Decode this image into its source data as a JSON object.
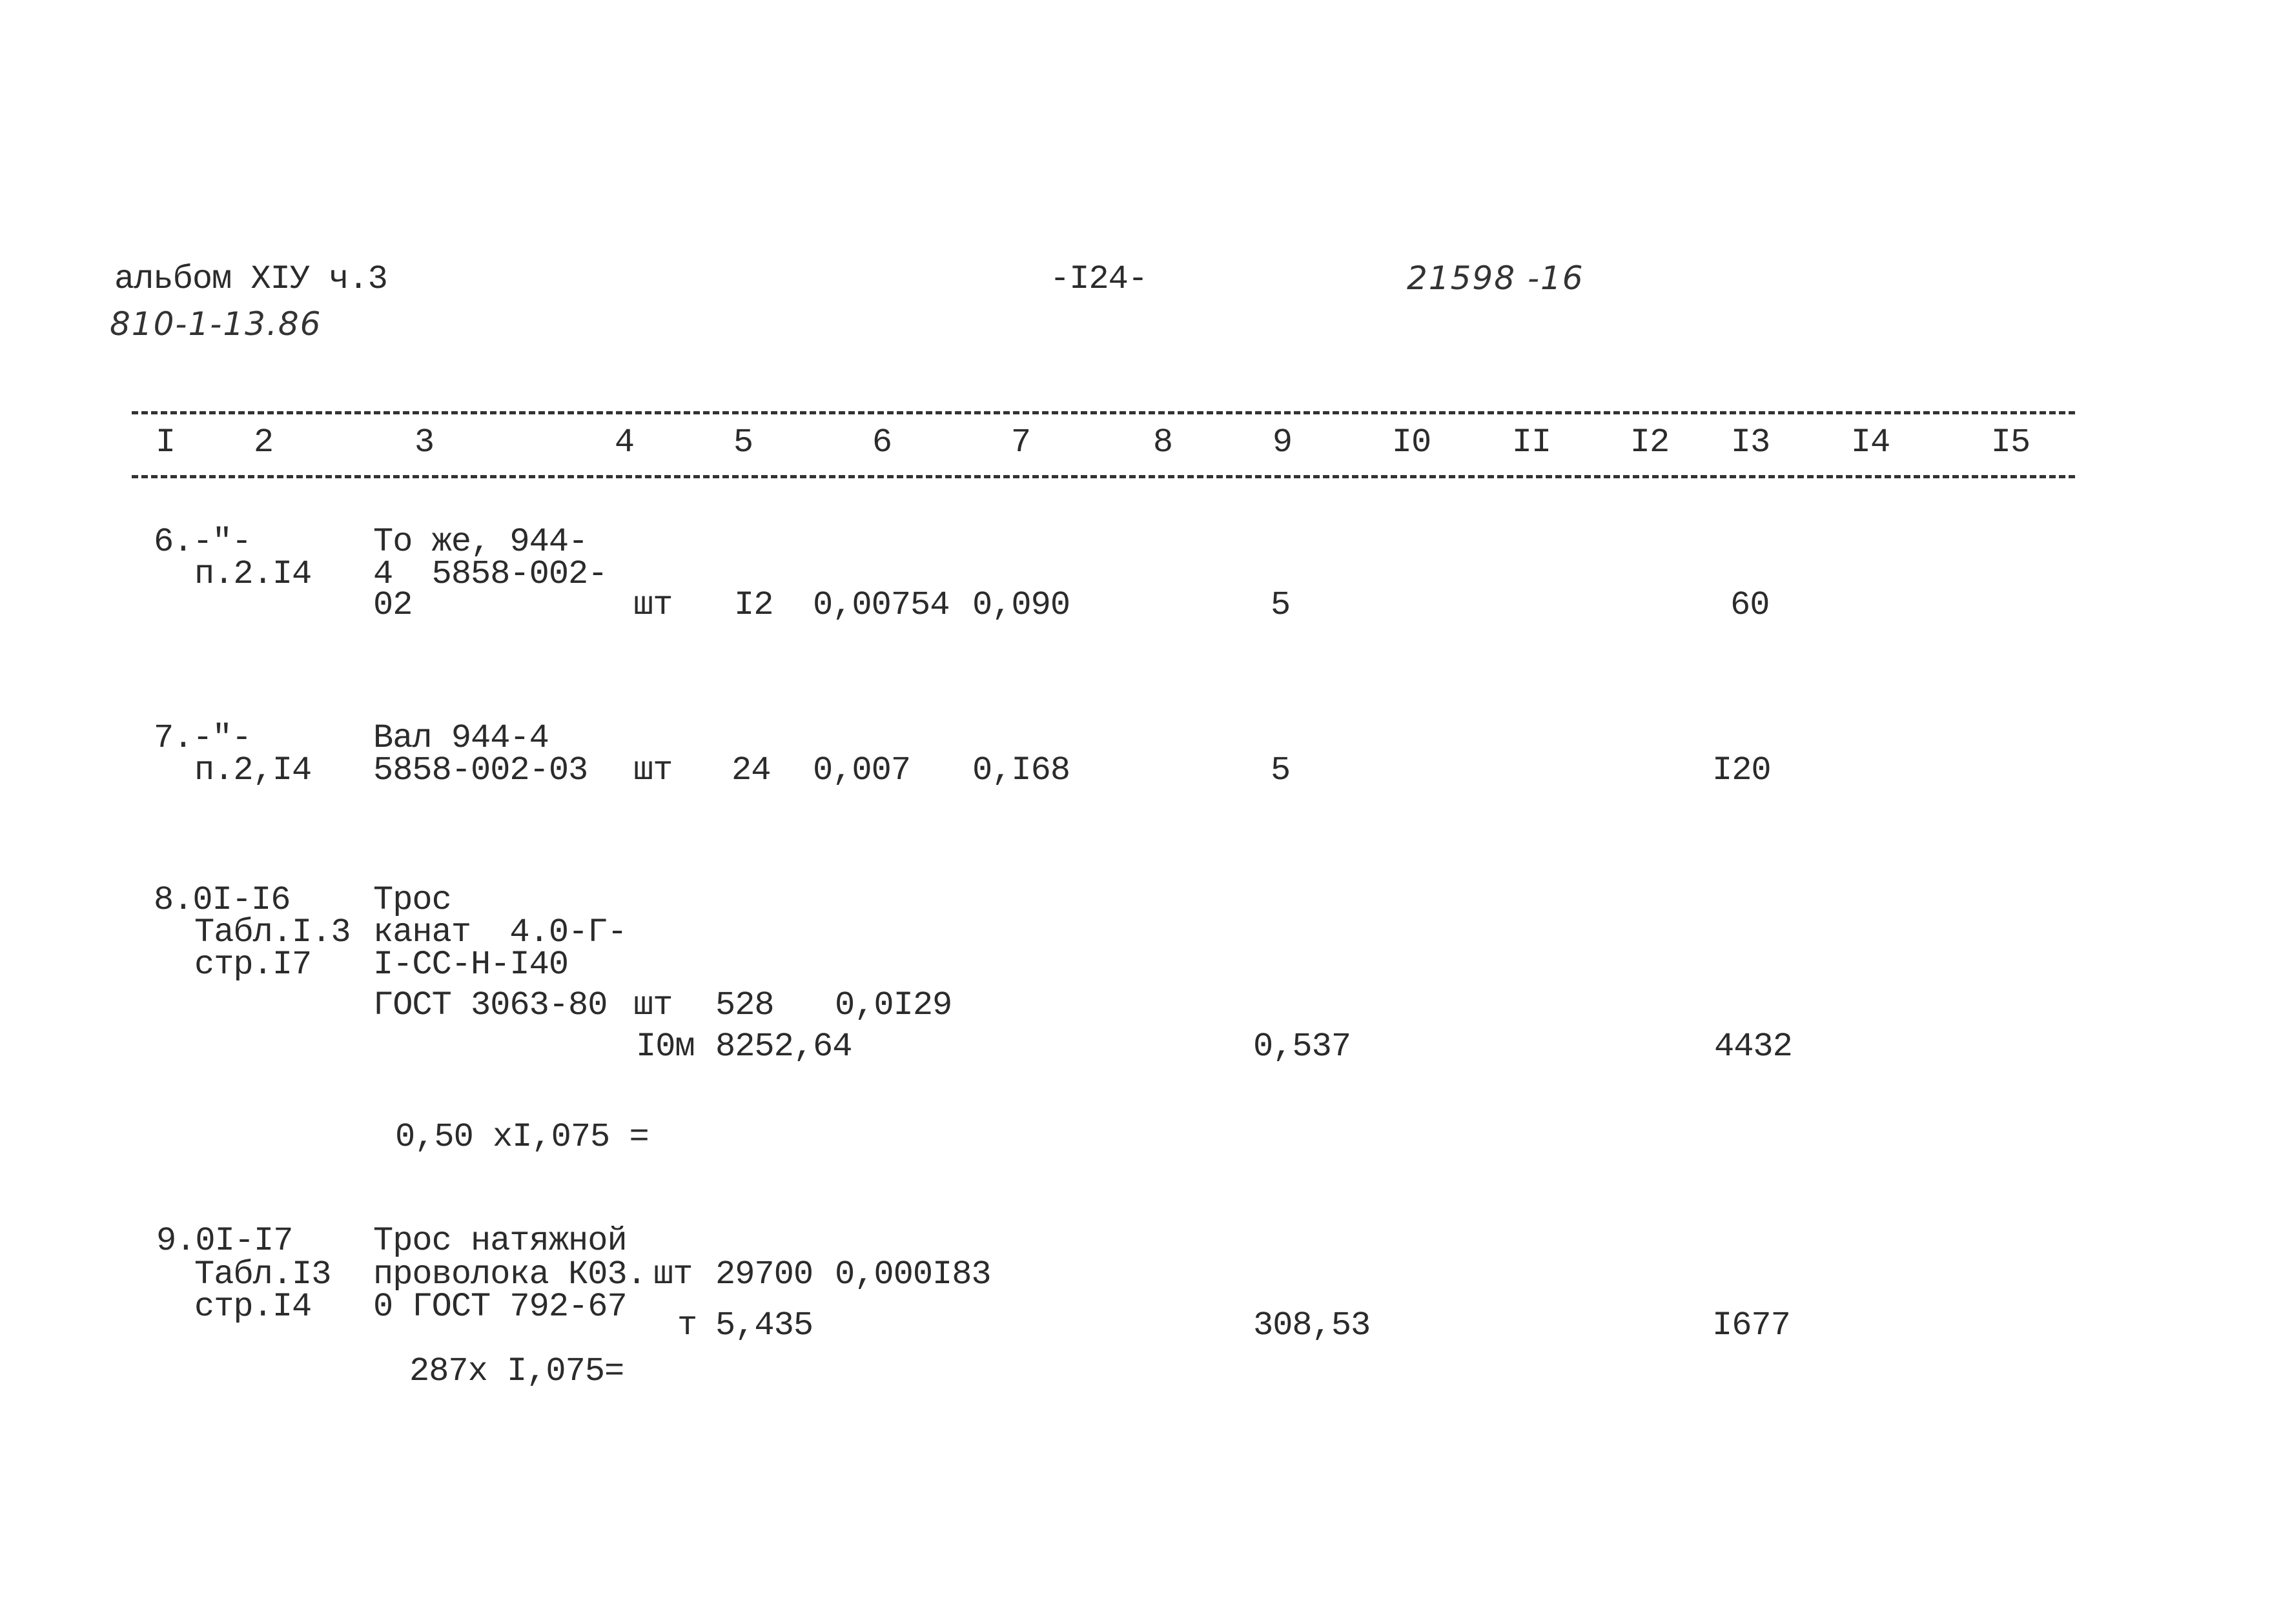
{
  "header": {
    "album": "альбом XIУ ч.3",
    "album_code": "810-1-13.86",
    "page_number": "-I24-",
    "doc_number": "21598 -16"
  },
  "columns": [
    "I",
    "2",
    "3",
    "4",
    "5",
    "6",
    "7",
    "8",
    "9",
    "I0",
    "II",
    "I2",
    "I3",
    "I4",
    "I5"
  ],
  "rows": [
    {
      "ref": [
        "6.-\"-",
        "п.2.I4"
      ],
      "desc": [
        "То же, 944-",
        "4  5858-002-",
        "02"
      ],
      "unit": "шт",
      "qty": "I2",
      "unit_mass": "0,00754",
      "total_mass": "0,090",
      "col9": "5",
      "col13": "60"
    },
    {
      "ref": [
        "7.-\"-",
        "п.2,I4"
      ],
      "desc": [
        "Вал 944-4",
        "5858-002-03"
      ],
      "unit": "шт",
      "qty": "24",
      "unit_mass": "0,007",
      "total_mass": "0,I68",
      "col9": "5",
      "col13": "I20"
    },
    {
      "ref": [
        "8.0I-I6",
        "Табл.I.3",
        "стр.I7"
      ],
      "desc": [
        "Трос",
        "канат  4.0-Г-",
        "I-CC-H-I40",
        "ГОСТ 3063-80"
      ],
      "unit": "шт",
      "qty": "528",
      "unit_mass": "0,0I29",
      "unit2": "I0м",
      "qty2": "8252,64",
      "col9": "0,537",
      "col13": "4432",
      "formula": "0,50 xI,075 ="
    },
    {
      "ref": [
        "9.0I-I7",
        "Табл.I3",
        "стр.I4"
      ],
      "desc": [
        "Трос натяжной",
        "проволока К03.",
        "0 ГОСТ 792-67"
      ],
      "unit": "шт",
      "qty": "29700",
      "unit_mass": "0,000I83",
      "unit2": "т",
      "qty2": "5,435",
      "col9": "308,53",
      "col13": "I677",
      "formula": "287x I,075="
    }
  ]
}
